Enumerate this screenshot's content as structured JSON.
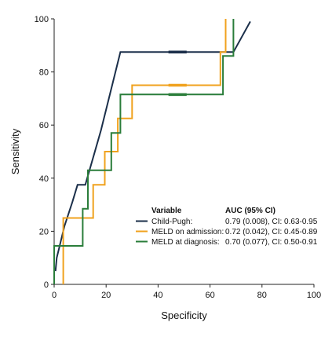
{
  "chart_data": {
    "type": "line",
    "title": "",
    "xlabel": "Specificity",
    "ylabel": "Sensitivity",
    "xlim": [
      0,
      100
    ],
    "ylim": [
      0,
      100
    ],
    "xticks": [
      "0",
      "20",
      "40",
      "60",
      "80",
      "100"
    ],
    "yticks": [
      "0",
      "20",
      "40",
      "60",
      "80",
      "100"
    ],
    "grid": false,
    "legend_position": "lower-right",
    "legend_header": {
      "variable": "Variable",
      "auc": "AUC (95% CI)"
    },
    "series": [
      {
        "name": "Child-Pugh:",
        "auc": "0.79 (0.008), CI: 0.63-0.95",
        "color": "#1b2f4a",
        "points": [
          [
            0.5,
            5
          ],
          [
            1,
            10
          ],
          [
            2,
            14
          ],
          [
            4,
            22
          ],
          [
            7,
            31
          ],
          [
            9,
            37.5
          ],
          [
            12,
            37.5
          ],
          [
            18,
            58
          ],
          [
            25.5,
            87.5
          ],
          [
            44,
            87.5
          ],
          [
            50,
            87.5
          ],
          [
            69,
            87.5
          ],
          [
            75.5,
            99
          ]
        ],
        "marker": [
          [
            44,
            87.5
          ],
          [
            51,
            87.5
          ]
        ]
      },
      {
        "name": "MELD on admission:",
        "auc": "0.72 (0.042), CI: 0.45-0.89",
        "color": "#f0a21e",
        "points": [
          [
            3.5,
            0
          ],
          [
            3.5,
            25
          ],
          [
            15,
            25
          ],
          [
            15,
            37.5
          ],
          [
            19.5,
            37.5
          ],
          [
            19.5,
            50
          ],
          [
            24.5,
            50
          ],
          [
            24.5,
            62.5
          ],
          [
            30,
            62.5
          ],
          [
            30,
            75
          ],
          [
            64,
            75
          ],
          [
            64,
            87.5
          ],
          [
            66,
            87.5
          ],
          [
            66,
            100
          ]
        ],
        "marker": [
          [
            44,
            75
          ],
          [
            51,
            75
          ]
        ]
      },
      {
        "name": "MELD at diagnosis:",
        "auc": "0.70 (0.077), CI: 0.50-0.91",
        "color": "#2a7d3a",
        "points": [
          [
            0,
            0
          ],
          [
            0,
            14.5
          ],
          [
            11,
            14.5
          ],
          [
            11,
            28.5
          ],
          [
            13,
            28.5
          ],
          [
            13,
            43
          ],
          [
            22,
            43
          ],
          [
            22,
            57
          ],
          [
            25.5,
            57
          ],
          [
            25.5,
            71.5
          ],
          [
            65,
            71.5
          ],
          [
            65,
            86
          ],
          [
            69,
            86
          ],
          [
            69,
            100
          ]
        ],
        "marker": [
          [
            44,
            71.5
          ],
          [
            51,
            71.5
          ]
        ]
      }
    ]
  }
}
